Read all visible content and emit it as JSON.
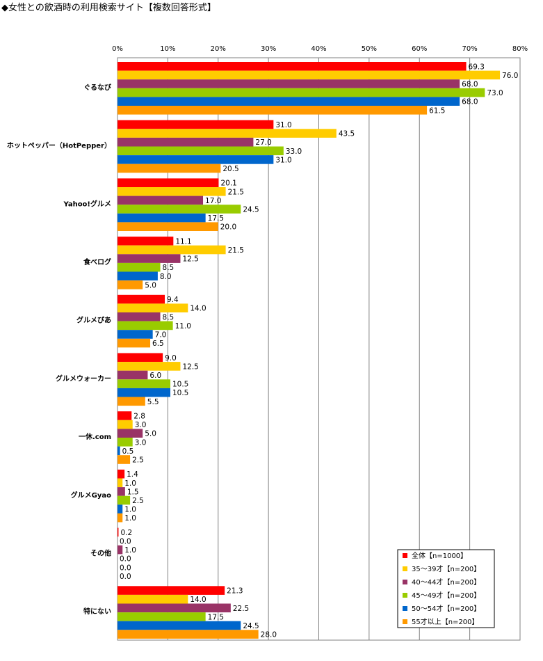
{
  "chart_data": {
    "type": "bar",
    "orientation": "horizontal",
    "title": "◆女性との飲酒時の利用検索サイト【複数回答形式】",
    "xlim": [
      0,
      80
    ],
    "x_ticks": [
      "0%",
      "10%",
      "20%",
      "30%",
      "40%",
      "50%",
      "60%",
      "70%",
      "80%"
    ],
    "grid": true,
    "legend_position": "bottom-right",
    "categories": [
      "ぐるなび",
      "ホットペッパー（HotPepper）",
      "Yahoo!グルメ",
      "食べログ",
      "グルメぴあ",
      "グルメウォーカー",
      "一休.com",
      "グルメGyao",
      "その他",
      "特にない"
    ],
    "series": [
      {
        "name": "全体【n=1000】",
        "color": "#ff0000",
        "values": [
          69.3,
          31.0,
          20.1,
          11.1,
          9.4,
          9.0,
          2.8,
          1.4,
          0.2,
          21.3
        ]
      },
      {
        "name": "35～39才【n=200】",
        "color": "#ffcc00",
        "values": [
          76.0,
          43.5,
          21.5,
          21.5,
          14.0,
          12.5,
          3.0,
          1.0,
          0.0,
          14.0
        ]
      },
      {
        "name": "40～44才【n=200】",
        "color": "#993366",
        "values": [
          68.0,
          27.0,
          17.0,
          12.5,
          8.5,
          6.0,
          5.0,
          1.5,
          1.0,
          22.5
        ]
      },
      {
        "name": "45～49才【n=200】",
        "color": "#99cc00",
        "values": [
          73.0,
          33.0,
          24.5,
          8.5,
          11.0,
          10.5,
          3.0,
          2.5,
          0.0,
          17.5
        ]
      },
      {
        "name": "50～54才【n=200】",
        "color": "#0066cc",
        "values": [
          68.0,
          31.0,
          17.5,
          8.0,
          7.0,
          10.5,
          0.5,
          1.0,
          0.0,
          24.5
        ]
      },
      {
        "name": "55才以上【n=200】",
        "color": "#ff9900",
        "values": [
          61.5,
          20.5,
          20.0,
          5.0,
          6.5,
          5.5,
          2.5,
          1.0,
          0.0,
          28.0
        ]
      }
    ]
  }
}
